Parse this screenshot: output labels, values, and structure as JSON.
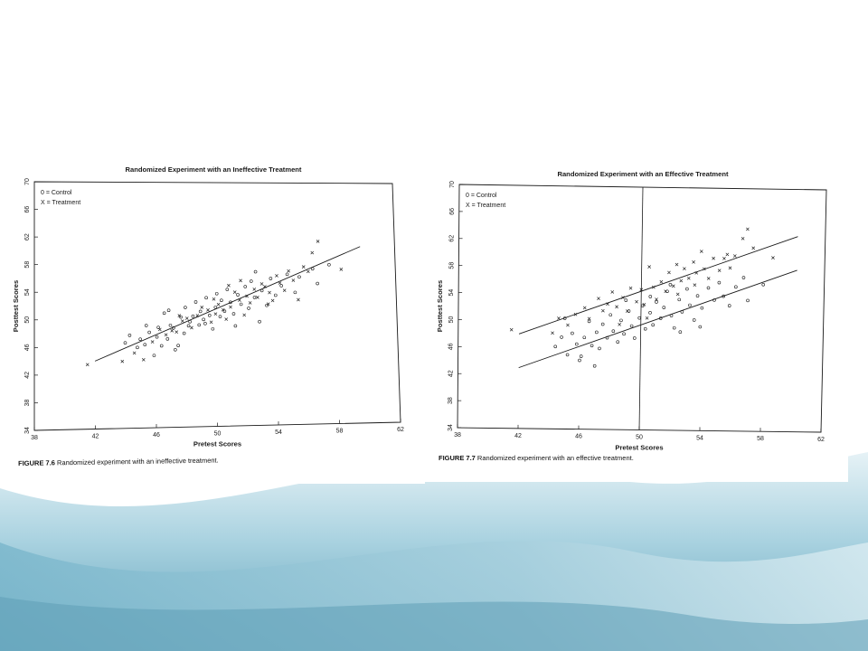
{
  "colors": {
    "wave_light": "#cfe6ef",
    "wave_mid": "#8ec3d6",
    "wave_dark": "#5fa6bf",
    "ink": "#1a1a1a"
  },
  "chart_data": [
    {
      "type": "scatter",
      "title": "Randomized Experiment with an Ineffective Treatment",
      "xlabel": "Pretest Scores",
      "ylabel": "Posttest Scores",
      "xlim": [
        38,
        62
      ],
      "ylim": [
        34,
        70
      ],
      "xticks": [
        38,
        42,
        46,
        50,
        54,
        58,
        62
      ],
      "yticks": [
        34,
        38,
        42,
        46,
        50,
        54,
        58,
        62,
        66,
        70
      ],
      "legend": [
        "0 = Control",
        "X = Treatment"
      ],
      "legend_position": "top-left",
      "caption_label": "FIGURE 7.6",
      "caption_text": " Randomized experiment with an ineffective treatment.",
      "regression_lines": [
        {
          "name": "",
          "x": [
            42,
            59.7
          ],
          "y": [
            43.9,
            60.5
          ]
        }
      ],
      "series": [
        {
          "name": "Control",
          "marker": "o",
          "points": [
            [
              44.0,
              46.5
            ],
            [
              44.3,
              47.6
            ],
            [
              44.8,
              45.8
            ],
            [
              45.0,
              47.0
            ],
            [
              45.3,
              46.2
            ],
            [
              45.6,
              48.0
            ],
            [
              45.9,
              44.6
            ],
            [
              46.1,
              47.3
            ],
            [
              46.2,
              48.7
            ],
            [
              46.4,
              46.0
            ],
            [
              46.6,
              50.8
            ],
            [
              46.8,
              47.0
            ],
            [
              47.0,
              49.0
            ],
            [
              47.2,
              48.6
            ],
            [
              47.5,
              46.0
            ],
            [
              47.7,
              50.2
            ],
            [
              47.9,
              47.8
            ],
            [
              48.0,
              51.6
            ],
            [
              48.2,
              48.9
            ],
            [
              48.5,
              50.3
            ],
            [
              48.7,
              52.4
            ],
            [
              48.9,
              49.0
            ],
            [
              49.0,
              51.0
            ],
            [
              49.2,
              49.8
            ],
            [
              49.4,
              53.0
            ],
            [
              49.6,
              50.4
            ],
            [
              49.8,
              48.4
            ],
            [
              50.0,
              51.6
            ],
            [
              50.1,
              53.6
            ],
            [
              50.3,
              50.2
            ],
            [
              50.6,
              51.0
            ],
            [
              50.8,
              54.2
            ],
            [
              51.0,
              52.3
            ],
            [
              51.2,
              50.6
            ],
            [
              51.5,
              53.4
            ],
            [
              51.7,
              52.0
            ],
            [
              52.0,
              54.6
            ],
            [
              52.2,
              51.4
            ],
            [
              52.4,
              55.4
            ],
            [
              52.6,
              53.0
            ],
            [
              52.9,
              49.4
            ],
            [
              53.1,
              54.0
            ],
            [
              53.4,
              51.8
            ],
            [
              53.7,
              55.8
            ],
            [
              54.0,
              53.3
            ],
            [
              54.4,
              54.7
            ],
            [
              54.8,
              56.4
            ],
            [
              55.3,
              53.7
            ],
            [
              55.6,
              56.0
            ],
            [
              56.5,
              57.2
            ],
            [
              56.8,
              55.0
            ],
            [
              57.6,
              57.8
            ],
            [
              45.4,
              49.0
            ],
            [
              47.3,
              45.4
            ],
            [
              49.3,
              49.2
            ],
            [
              51.3,
              48.8
            ],
            [
              50.4,
              52.6
            ],
            [
              48.3,
              49.5
            ],
            [
              46.9,
              51.2
            ],
            [
              52.7,
              56.8
            ]
          ]
        },
        {
          "name": "Treatment",
          "marker": "x",
          "points": [
            [
              41.5,
              43.4
            ],
            [
              43.8,
              43.8
            ],
            [
              44.6,
              45.0
            ],
            [
              45.2,
              44.0
            ],
            [
              45.8,
              46.6
            ],
            [
              46.3,
              48.4
            ],
            [
              46.7,
              47.6
            ],
            [
              47.1,
              48.2
            ],
            [
              47.4,
              48.0
            ],
            [
              47.8,
              49.6
            ],
            [
              48.1,
              50.0
            ],
            [
              48.4,
              48.6
            ],
            [
              48.8,
              50.4
            ],
            [
              49.1,
              51.6
            ],
            [
              49.5,
              51.2
            ],
            [
              49.7,
              49.4
            ],
            [
              50.0,
              50.6
            ],
            [
              50.2,
              52.0
            ],
            [
              50.5,
              51.2
            ],
            [
              50.7,
              49.8
            ],
            [
              51.0,
              51.6
            ],
            [
              51.3,
              53.8
            ],
            [
              51.6,
              52.6
            ],
            [
              51.9,
              50.4
            ],
            [
              52.1,
              53.2
            ],
            [
              52.3,
              52.2
            ],
            [
              52.6,
              54.2
            ],
            [
              52.8,
              53.0
            ],
            [
              53.1,
              55.0
            ],
            [
              53.3,
              54.6
            ],
            [
              53.6,
              53.7
            ],
            [
              53.8,
              52.5
            ],
            [
              54.1,
              56.2
            ],
            [
              54.3,
              55.1
            ],
            [
              54.6,
              54.0
            ],
            [
              54.9,
              56.9
            ],
            [
              55.2,
              55.5
            ],
            [
              55.5,
              52.6
            ],
            [
              55.9,
              57.5
            ],
            [
              56.2,
              56.8
            ],
            [
              56.5,
              59.6
            ],
            [
              56.9,
              61.3
            ],
            [
              58.4,
              57.1
            ],
            [
              50.9,
              54.8
            ],
            [
              49.9,
              52.8
            ],
            [
              47.6,
              50.4
            ],
            [
              53.5,
              52.0
            ],
            [
              51.7,
              55.5
            ]
          ]
        }
      ]
    },
    {
      "type": "scatter",
      "title": "Randomized Experiment with an Effective Treatment",
      "xlabel": "Pretest Scores",
      "ylabel": "Posttest Scores",
      "xlim": [
        38,
        62
      ],
      "ylim": [
        34,
        70
      ],
      "xticks": [
        38,
        42,
        46,
        50,
        54,
        58,
        62
      ],
      "yticks": [
        34,
        38,
        42,
        46,
        50,
        54,
        58,
        62,
        66,
        70
      ],
      "legend": [
        "0 = Control",
        "X = Treatment"
      ],
      "legend_position": "top-left",
      "caption_label": "FIGURE 7.7",
      "caption_text": " Randomized experiment with an effective treatment.",
      "vertical_line_x": 50,
      "regression_lines": [
        {
          "name": "",
          "x": [
            42,
            60.2
          ],
          "y": [
            48.0,
            63.0
          ]
        },
        {
          "name": "",
          "x": [
            42,
            60.2
          ],
          "y": [
            43.0,
            58.0
          ]
        }
      ],
      "series": [
        {
          "name": "Control",
          "marker": "o",
          "points": [
            [
              44.4,
              46.2
            ],
            [
              44.8,
              47.6
            ],
            [
              45.2,
              45.0
            ],
            [
              45.5,
              48.2
            ],
            [
              45.8,
              46.6
            ],
            [
              46.1,
              44.8
            ],
            [
              46.3,
              47.6
            ],
            [
              46.6,
              50.0
            ],
            [
              46.8,
              46.4
            ],
            [
              47.1,
              48.4
            ],
            [
              47.3,
              46.0
            ],
            [
              47.5,
              49.6
            ],
            [
              47.8,
              47.6
            ],
            [
              48.0,
              51.0
            ],
            [
              48.2,
              48.6
            ],
            [
              48.5,
              47.0
            ],
            [
              48.7,
              50.2
            ],
            [
              48.9,
              48.2
            ],
            [
              49.2,
              51.6
            ],
            [
              49.4,
              49.4
            ],
            [
              49.6,
              47.6
            ],
            [
              49.9,
              50.6
            ],
            [
              50.1,
              52.4
            ],
            [
              50.3,
              49.0
            ],
            [
              50.6,
              51.4
            ],
            [
              50.8,
              49.6
            ],
            [
              51.0,
              53.0
            ],
            [
              51.3,
              50.6
            ],
            [
              51.5,
              52.2
            ],
            [
              51.7,
              54.6
            ],
            [
              52.0,
              51.0
            ],
            [
              52.2,
              49.2
            ],
            [
              52.5,
              53.4
            ],
            [
              52.7,
              51.6
            ],
            [
              53.0,
              55.0
            ],
            [
              53.2,
              52.6
            ],
            [
              53.5,
              50.4
            ],
            [
              53.7,
              54.0
            ],
            [
              54.0,
              52.2
            ],
            [
              54.4,
              55.2
            ],
            [
              54.8,
              53.4
            ],
            [
              55.1,
              56.0
            ],
            [
              55.4,
              54.0
            ],
            [
              55.8,
              52.6
            ],
            [
              56.2,
              55.4
            ],
            [
              56.7,
              56.8
            ],
            [
              57.0,
              53.4
            ],
            [
              58.0,
              55.8
            ],
            [
              47.0,
              43.4
            ],
            [
              46.0,
              44.2
            ],
            [
              50.6,
              53.8
            ],
            [
              52.6,
              48.6
            ],
            [
              53.9,
              49.4
            ],
            [
              49.0,
              53.2
            ],
            [
              51.9,
              55.6
            ],
            [
              45.0,
              50.4
            ]
          ]
        },
        {
          "name": "Treatment",
          "marker": "x",
          "points": [
            [
              41.5,
              48.6
            ],
            [
              44.2,
              48.2
            ],
            [
              44.6,
              50.4
            ],
            [
              45.2,
              49.4
            ],
            [
              45.7,
              51.0
            ],
            [
              46.3,
              52.0
            ],
            [
              46.6,
              50.4
            ],
            [
              47.2,
              53.4
            ],
            [
              47.5,
              51.6
            ],
            [
              47.8,
              52.6
            ],
            [
              48.1,
              54.4
            ],
            [
              48.4,
              52.2
            ],
            [
              48.8,
              53.6
            ],
            [
              49.1,
              51.6
            ],
            [
              49.3,
              55.0
            ],
            [
              49.7,
              53.0
            ],
            [
              50.0,
              54.8
            ],
            [
              50.2,
              52.6
            ],
            [
              50.5,
              58.2
            ],
            [
              50.8,
              55.2
            ],
            [
              51.0,
              53.4
            ],
            [
              51.3,
              56.0
            ],
            [
              51.6,
              54.6
            ],
            [
              51.8,
              57.4
            ],
            [
              52.1,
              55.4
            ],
            [
              52.3,
              58.6
            ],
            [
              52.6,
              56.2
            ],
            [
              52.8,
              58.0
            ],
            [
              53.1,
              56.6
            ],
            [
              53.4,
              59.0
            ],
            [
              53.6,
              57.4
            ],
            [
              53.9,
              60.6
            ],
            [
              54.1,
              58.0
            ],
            [
              54.4,
              56.6
            ],
            [
              54.7,
              59.6
            ],
            [
              55.1,
              57.8
            ],
            [
              55.4,
              59.6
            ],
            [
              55.8,
              58.2
            ],
            [
              56.1,
              60.0
            ],
            [
              56.6,
              62.6
            ],
            [
              56.9,
              64.0
            ],
            [
              57.3,
              61.2
            ],
            [
              58.6,
              59.8
            ],
            [
              50.4,
              50.6
            ],
            [
              48.6,
              49.6
            ],
            [
              52.4,
              54.2
            ],
            [
              53.5,
              55.6
            ],
            [
              55.6,
              60.2
            ]
          ]
        }
      ]
    }
  ]
}
